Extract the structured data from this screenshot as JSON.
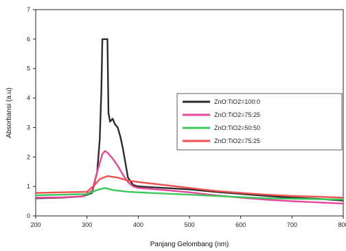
{
  "chart_data": {
    "type": "line",
    "title": "",
    "xlabel": "Panjang Gelombang (nm)",
    "ylabel": "Absorbansi (a.u)",
    "xlim": [
      200,
      800
    ],
    "ylim": [
      0,
      7
    ],
    "x_ticks": [
      "200",
      "300",
      "400",
      "500",
      "600",
      "700",
      "800"
    ],
    "y_ticks": [
      "0",
      "1",
      "2",
      "3",
      "4",
      "5",
      "6",
      "7"
    ],
    "grid": false,
    "legend_position": "right",
    "series": [
      {
        "name": "ZnO:TiO2=100:0",
        "color": "#2b2b2b",
        "points": [
          [
            200,
            0.6
          ],
          [
            250,
            0.62
          ],
          [
            290,
            0.66
          ],
          [
            310,
            0.78
          ],
          [
            320,
            1.5
          ],
          [
            325,
            2.6
          ],
          [
            328,
            4.2
          ],
          [
            330,
            6.0
          ],
          [
            335,
            6.0
          ],
          [
            340,
            6.0
          ],
          [
            342,
            3.5
          ],
          [
            345,
            3.2
          ],
          [
            350,
            3.3
          ],
          [
            355,
            3.1
          ],
          [
            360,
            3.0
          ],
          [
            365,
            2.7
          ],
          [
            370,
            2.3
          ],
          [
            375,
            1.8
          ],
          [
            380,
            1.3
          ],
          [
            390,
            1.05
          ],
          [
            400,
            1.0
          ],
          [
            450,
            0.95
          ],
          [
            500,
            0.9
          ],
          [
            550,
            0.82
          ],
          [
            600,
            0.75
          ],
          [
            650,
            0.68
          ],
          [
            700,
            0.62
          ],
          [
            750,
            0.58
          ],
          [
            800,
            0.52
          ]
        ]
      },
      {
        "name": "ZnO:TiO2=75:25",
        "color": "#e6479a",
        "points": [
          [
            200,
            0.62
          ],
          [
            250,
            0.63
          ],
          [
            290,
            0.66
          ],
          [
            310,
            0.85
          ],
          [
            320,
            1.5
          ],
          [
            330,
            2.1
          ],
          [
            335,
            2.2
          ],
          [
            340,
            2.15
          ],
          [
            350,
            1.95
          ],
          [
            360,
            1.7
          ],
          [
            370,
            1.4
          ],
          [
            380,
            1.15
          ],
          [
            390,
            1.0
          ],
          [
            400,
            0.95
          ],
          [
            450,
            0.88
          ],
          [
            500,
            0.8
          ],
          [
            550,
            0.7
          ],
          [
            600,
            0.62
          ],
          [
            650,
            0.55
          ],
          [
            700,
            0.5
          ],
          [
            750,
            0.46
          ],
          [
            800,
            0.42
          ]
        ]
      },
      {
        "name": "ZnO:TiO2=50:50",
        "color": "#3cc85a",
        "points": [
          [
            200,
            0.7
          ],
          [
            250,
            0.72
          ],
          [
            300,
            0.74
          ],
          [
            320,
            0.88
          ],
          [
            335,
            0.95
          ],
          [
            350,
            0.88
          ],
          [
            380,
            0.82
          ],
          [
            400,
            0.8
          ],
          [
            450,
            0.76
          ],
          [
            500,
            0.72
          ],
          [
            550,
            0.68
          ],
          [
            600,
            0.64
          ],
          [
            650,
            0.6
          ],
          [
            700,
            0.58
          ],
          [
            750,
            0.57
          ],
          [
            800,
            0.56
          ]
        ]
      },
      {
        "name": "ZnO:TiO2=75:25",
        "color": "#ee5050",
        "points": [
          [
            200,
            0.78
          ],
          [
            250,
            0.8
          ],
          [
            300,
            0.82
          ],
          [
            315,
            1.05
          ],
          [
            325,
            1.25
          ],
          [
            340,
            1.35
          ],
          [
            360,
            1.3
          ],
          [
            380,
            1.2
          ],
          [
            400,
            1.15
          ],
          [
            450,
            1.05
          ],
          [
            500,
            0.95
          ],
          [
            550,
            0.85
          ],
          [
            600,
            0.78
          ],
          [
            650,
            0.72
          ],
          [
            700,
            0.68
          ],
          [
            750,
            0.65
          ],
          [
            800,
            0.62
          ]
        ]
      }
    ]
  }
}
